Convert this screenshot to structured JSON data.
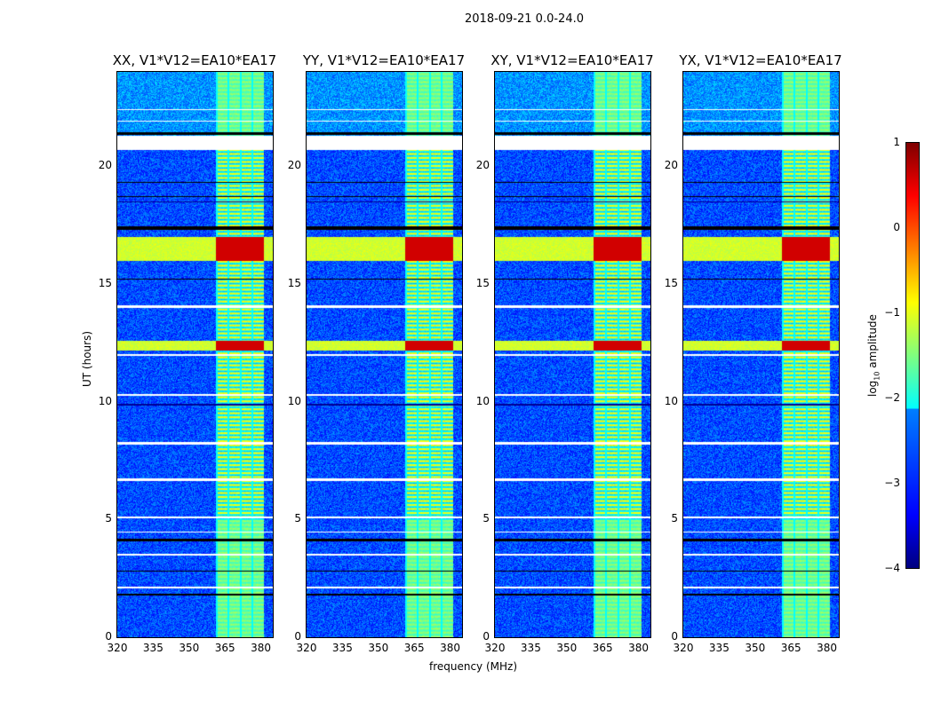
{
  "suptitle": "2018-09-21 0.0-24.0",
  "chart_data": {
    "type": "heatmap",
    "title": "2018-09-21 0.0-24.0",
    "xlabel": "frequency (MHz)",
    "ylabel": "UT (hours)",
    "xlim": [
      320,
      385
    ],
    "ylim": [
      0,
      24
    ],
    "xticks": [
      "320",
      "335",
      "350",
      "365",
      "380"
    ],
    "xtick_values": [
      320,
      335,
      350,
      365,
      380
    ],
    "yticks": [
      "0",
      "5",
      "10",
      "15",
      "20"
    ],
    "ytick_values": [
      0,
      5,
      10,
      15,
      20
    ],
    "panels": [
      {
        "title": "XX, V1*V12=EA10*EA17"
      },
      {
        "title": "YY, V1*V12=EA10*EA17"
      },
      {
        "title": "XY, V1*V12=EA10*EA17"
      },
      {
        "title": "YX, V1*V12=EA10*EA17"
      }
    ],
    "colorbar": {
      "label": "log10 amplitude",
      "label_main": "log",
      "label_sub": "10",
      "label_rest": " amplitude",
      "range": [
        -4,
        1
      ],
      "ticks": [
        "1",
        "0",
        "−1",
        "−2",
        "−3",
        "−4"
      ],
      "tick_values": [
        1,
        0,
        -1,
        -2,
        -3,
        -4
      ],
      "colormap": "jet"
    },
    "background_log_amplitude": -3,
    "rfi_band_mhz": [
      361,
      381
    ],
    "rfi_band_log_amplitude": -1,
    "strong_rfi_hours": [
      [
        12.2,
        12.6
      ],
      [
        16.0,
        17.0
      ]
    ],
    "flagged_hours": [
      [
        20.7,
        21.3
      ],
      [
        22.4,
        22.45
      ],
      [
        21.9,
        21.95
      ],
      [
        14.0,
        14.1
      ],
      [
        11.95,
        12.05
      ],
      [
        10.25,
        10.35
      ],
      [
        8.2,
        8.3
      ],
      [
        6.65,
        6.75
      ],
      [
        5.05,
        5.15
      ],
      [
        4.45,
        4.5
      ],
      [
        3.5,
        3.55
      ],
      [
        2.1,
        2.15
      ]
    ],
    "dark_hours": [
      [
        21.35,
        21.45
      ],
      [
        17.3,
        17.45
      ],
      [
        19.3,
        19.35
      ],
      [
        18.7,
        18.75
      ],
      [
        15.2,
        15.25
      ],
      [
        4.1,
        4.2
      ],
      [
        2.8,
        2.85
      ],
      [
        1.8,
        1.85
      ]
    ]
  }
}
